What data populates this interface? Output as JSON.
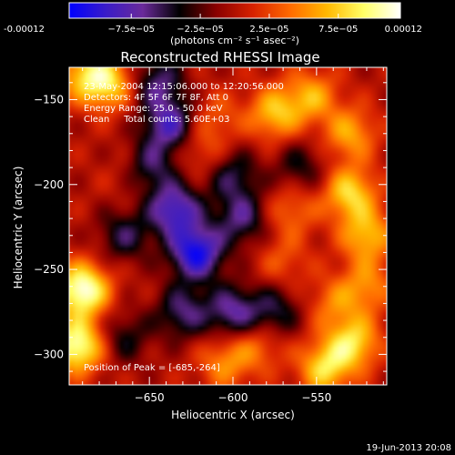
{
  "colorbar": {
    "tick_labels": [
      "-0.00012",
      "−7.5e−05",
      "−2.5e−05",
      "2.5e−05",
      "7.5e−05",
      "0.00012"
    ],
    "range": [
      -0.00012,
      0.00012
    ],
    "units_label": "(photons cm⁻² s⁻¹ asec⁻²)",
    "colors": [
      "#0000ff",
      "#3a1cc8",
      "#6a2a9a",
      "#000000",
      "#8a0000",
      "#d82200",
      "#ff6a00",
      "#ffb800",
      "#ffff66",
      "#ffffff"
    ]
  },
  "title": "Reconstructed RHESSI Image",
  "info": {
    "time": "23-May-2004 12:15:06.000 to 12:20:56.000",
    "detectors": "Detectors: 4F 5F 6F 7F 8F, Att 0",
    "energy": "Energy Range: 25.0 - 50.0 keV",
    "clean": "Clean     Total counts: 5.60E+03"
  },
  "peak_label": "Position of Peak = [-685,-264]",
  "timestamp": "19-Jun-2013 20:08",
  "chart_data": {
    "type": "heatmap",
    "title": "Reconstructed RHESSI Image",
    "xlabel": "Heliocentric X (arcsec)",
    "ylabel": "Heliocentric Y (arcsec)",
    "xlim": [
      -698,
      -508
    ],
    "ylim": [
      -318,
      -131
    ],
    "x_ticks": [
      -650,
      -600,
      -550
    ],
    "y_ticks": [
      -150,
      -200,
      -250,
      -300
    ],
    "x_tick_labels": [
      "−650",
      "−600",
      "−550"
    ],
    "y_tick_labels": [
      "−150",
      "−200",
      "−250",
      "−300"
    ],
    "zlim": [
      -0.00012,
      0.00012
    ],
    "peak_position": [
      -685,
      -264
    ],
    "sources": [
      {
        "x": -690,
        "y": -262,
        "amp": 0.00012
      },
      {
        "x": -693,
        "y": -295,
        "amp": 0.00011
      },
      {
        "x": -675,
        "y": -140,
        "amp": 8e-05
      },
      {
        "x": -690,
        "y": -135,
        "amp": 6e-05
      },
      {
        "x": -575,
        "y": -158,
        "amp": 7e-05
      },
      {
        "x": -553,
        "y": -148,
        "amp": 6e-05
      },
      {
        "x": -530,
        "y": -170,
        "amp": 6e-05
      },
      {
        "x": -530,
        "y": -205,
        "amp": 8e-05
      },
      {
        "x": -520,
        "y": -230,
        "amp": 7e-05
      },
      {
        "x": -520,
        "y": -260,
        "amp": 5e-05
      },
      {
        "x": -528,
        "y": -293,
        "amp": 8e-05
      },
      {
        "x": -545,
        "y": -308,
        "amp": 8e-05
      },
      {
        "x": -605,
        "y": -305,
        "amp": 5e-05
      },
      {
        "x": -585,
        "y": -295,
        "amp": 4e-05
      },
      {
        "x": -620,
        "y": -180,
        "amp": 3e-05
      },
      {
        "x": -610,
        "y": -160,
        "amp": 3e-05
      },
      {
        "x": -570,
        "y": -245,
        "amp": 3e-05
      },
      {
        "x": -660,
        "y": -195,
        "amp": 2e-05
      },
      {
        "x": -565,
        "y": -215,
        "amp": 4e-05
      },
      {
        "x": -540,
        "y": -270,
        "amp": 4e-05
      },
      {
        "x": -622,
        "y": -240,
        "amp": -0.00011
      },
      {
        "x": -635,
        "y": -215,
        "amp": -9e-05
      },
      {
        "x": -638,
        "y": -165,
        "amp": -8e-05
      },
      {
        "x": -645,
        "y": -140,
        "amp": -6e-05
      },
      {
        "x": -630,
        "y": -275,
        "amp": -6e-05
      },
      {
        "x": -600,
        "y": -275,
        "amp": -7e-05
      },
      {
        "x": -665,
        "y": -230,
        "amp": -5e-05
      },
      {
        "x": -650,
        "y": -190,
        "amp": -6e-05
      },
      {
        "x": -595,
        "y": -220,
        "amp": -6e-05
      },
      {
        "x": -575,
        "y": -275,
        "amp": -5e-05
      },
      {
        "x": -560,
        "y": -190,
        "amp": -4e-05
      },
      {
        "x": -665,
        "y": -290,
        "amp": -4e-05
      },
      {
        "x": -600,
        "y": -195,
        "amp": -5e-05
      }
    ]
  }
}
